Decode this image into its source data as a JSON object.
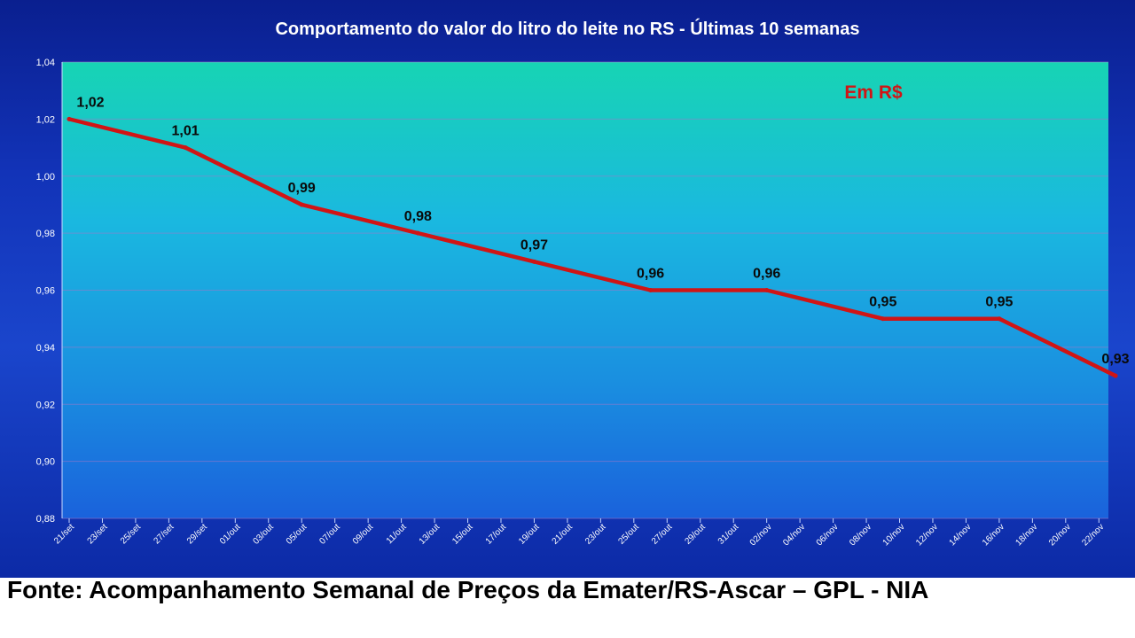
{
  "chart_data": {
    "type": "line",
    "title": "Comportamento do valor do litro do leite no RS - Últimas 10 semanas",
    "unit_annotation": "Em R$",
    "xlabel": "",
    "ylabel": "",
    "ylim": [
      0.88,
      1.04
    ],
    "y_ticks": [
      "1,04",
      "1,02",
      "1,00",
      "0,98",
      "0,96",
      "0,94",
      "0,92",
      "0,90",
      "0,88"
    ],
    "x_ticks": [
      "21/set",
      "23/set",
      "25/set",
      "27/set",
      "29/set",
      "01/out",
      "03/out",
      "05/out",
      "07/out",
      "09/out",
      "11/out",
      "13/out",
      "15/out",
      "17/out",
      "19/out",
      "21/out",
      "23/out",
      "25/out",
      "27/out",
      "29/out",
      "31/out",
      "02/nov",
      "04/nov",
      "06/nov",
      "08/nov",
      "10/nov",
      "12/nov",
      "14/nov",
      "16/nov",
      "18/nov",
      "20/nov",
      "22/nov"
    ],
    "grid": true,
    "legend": "none",
    "line_color": "#d01515",
    "series": [
      {
        "x": [
          "21/set",
          "28/set",
          "05/out",
          "12/out",
          "19/out",
          "26/out",
          "02/nov",
          "09/nov",
          "16/nov",
          "23/nov"
        ],
        "values": [
          1.02,
          1.01,
          0.99,
          0.98,
          0.97,
          0.96,
          0.96,
          0.95,
          0.95,
          0.93
        ],
        "labels": [
          "1,02",
          "1,01",
          "0,99",
          "0,98",
          "0,97",
          "0,96",
          "0,96",
          "0,95",
          "0,95",
          "0,93"
        ]
      }
    ]
  },
  "source": "Fonte: Acompanhamento Semanal de Preços da Emater/RS-Ascar – GPL - NIA"
}
